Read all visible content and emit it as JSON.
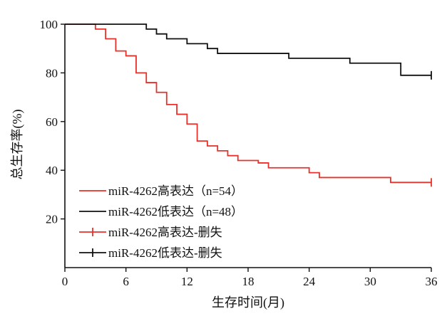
{
  "chart_data": {
    "type": "line",
    "subtype": "kaplan-meier",
    "title": "",
    "xlabel": "生存时间(月)",
    "ylabel": "总生存率(%)",
    "xlim": [
      0,
      36
    ],
    "ylim": [
      0,
      100
    ],
    "xticks": [
      "0",
      "6",
      "12",
      "18",
      "24",
      "30",
      "36"
    ],
    "yticks": [
      "20",
      "40",
      "60",
      "80",
      "100"
    ],
    "grid": false,
    "legend_position": "bottom-left",
    "legend": [
      {
        "label": "miR-4262高表达（n=54）",
        "color": "#e8312a",
        "style": "line"
      },
      {
        "label": "miR-4262低表达（n=48）",
        "color": "#111111",
        "style": "line"
      },
      {
        "label": "miR-4262高表达-删失",
        "color": "#e8312a",
        "style": "censor"
      },
      {
        "label": "miR-4262低表达-删失",
        "color": "#111111",
        "style": "censor"
      }
    ],
    "series": [
      {
        "name": "miR-4262高表达（n=54）",
        "color": "#e8312a",
        "x": [
          0,
          3,
          4,
          5,
          6,
          7,
          8,
          9,
          10,
          11,
          12,
          13,
          14,
          15,
          16,
          17,
          19,
          20,
          24,
          25,
          32,
          36
        ],
        "y": [
          100,
          98,
          94,
          89,
          87,
          80,
          76,
          72,
          67,
          63,
          59,
          52,
          50,
          48,
          46,
          44,
          43,
          41,
          39,
          37,
          35,
          35
        ],
        "censor_x": [
          36
        ],
        "censor_y": [
          35
        ]
      },
      {
        "name": "miR-4262低表达（n=48）",
        "color": "#111111",
        "x": [
          0,
          8,
          9,
          10,
          12,
          14,
          15,
          22,
          28,
          33,
          36
        ],
        "y": [
          100,
          98,
          96,
          94,
          92,
          90,
          88,
          86,
          84,
          79,
          79
        ],
        "censor_x": [
          36
        ],
        "censor_y": [
          79
        ]
      }
    ]
  }
}
